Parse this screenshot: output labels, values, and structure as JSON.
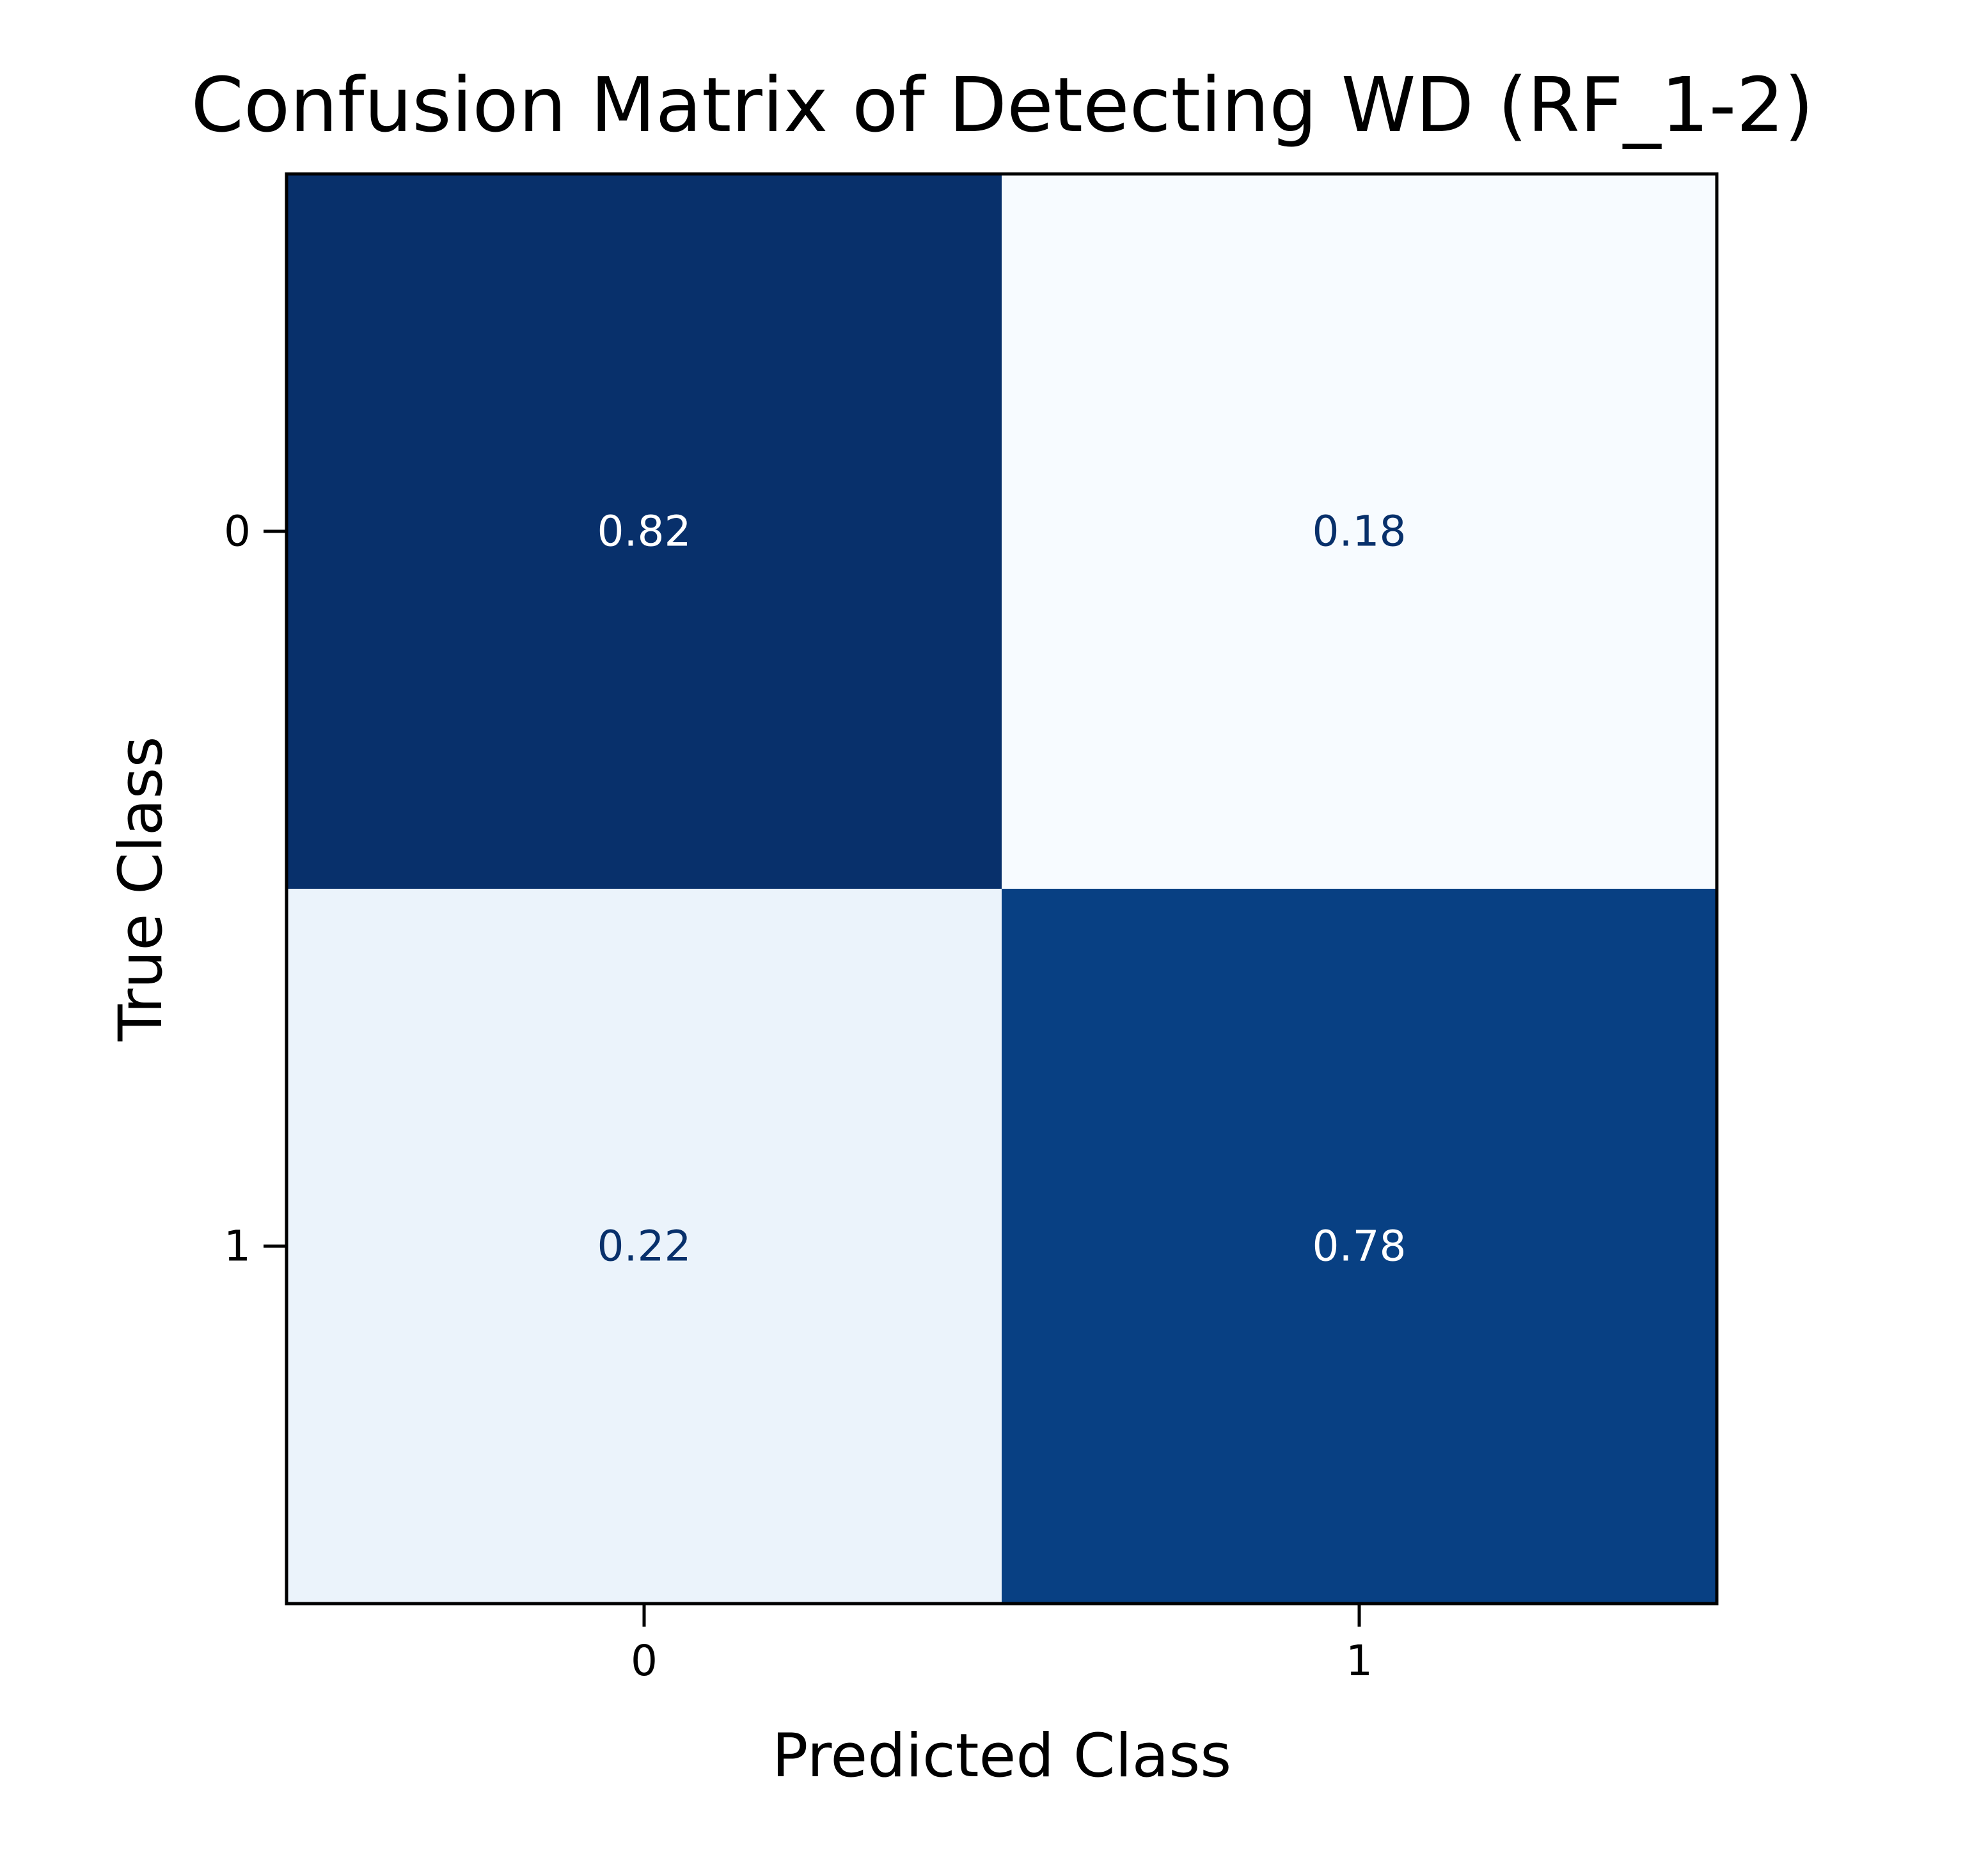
{
  "chart_data": {
    "type": "heatmap",
    "title": "Confusion Matrix of Detecting WD (RF_1-2)",
    "xlabel": "Predicted Class",
    "ylabel": "True Class",
    "x_categories": [
      "0",
      "1"
    ],
    "y_categories": [
      "0",
      "1"
    ],
    "values": [
      [
        0.82,
        0.18
      ],
      [
        0.22,
        0.78
      ]
    ],
    "value_labels": [
      [
        "0.82",
        "0.18"
      ],
      [
        "0.22",
        "0.78"
      ]
    ],
    "colormap": "Blues",
    "color_low": "#f7fbff",
    "color_high": "#08306b",
    "colorbar": false,
    "grid": false
  }
}
